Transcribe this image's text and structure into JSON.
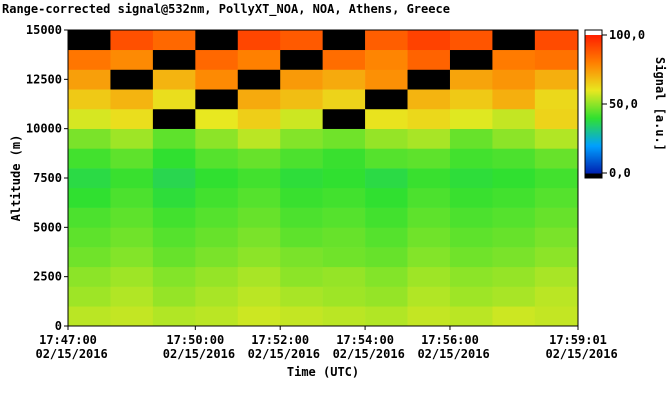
{
  "chart_data": {
    "type": "heatmap",
    "title": "Range-corrected signal@532nm, PollyXT_NOA, NOA, Athens, Greece",
    "x_label": "Time (UTC)",
    "y_label": "Altitude (m)",
    "colorbar_label": "Signal [a.u.]",
    "x_bins": [
      "2016-02-15T17:47:00",
      "2016-02-15T17:48:00",
      "2016-02-15T17:49:00",
      "2016-02-15T17:50:00",
      "2016-02-15T17:51:00",
      "2016-02-15T17:52:00",
      "2016-02-15T17:53:00",
      "2016-02-15T17:54:00",
      "2016-02-15T17:55:00",
      "2016-02-15T17:56:00",
      "2016-02-15T17:57:00",
      "2016-02-15T17:58:00",
      "2016-02-15T17:59:01"
    ],
    "y_bins": [
      0,
      1000,
      2000,
      3000,
      4000,
      5000,
      6000,
      7000,
      8000,
      9000,
      10000,
      11000,
      12000,
      13000,
      14000,
      15000
    ],
    "values": [
      [
        55,
        56,
        54,
        55,
        57,
        56,
        55,
        54,
        56,
        55,
        57,
        56
      ],
      [
        52,
        54,
        51,
        53,
        55,
        53,
        52,
        51,
        54,
        52,
        53,
        55
      ],
      [
        50,
        52,
        49,
        51,
        53,
        50,
        51,
        49,
        52,
        50,
        51,
        53
      ],
      [
        47,
        49,
        46,
        48,
        50,
        48,
        47,
        46,
        49,
        47,
        48,
        50
      ],
      [
        45,
        47,
        44,
        46,
        48,
        45,
        46,
        44,
        47,
        45,
        46,
        48
      ],
      [
        43,
        45,
        42,
        44,
        46,
        43,
        44,
        42,
        45,
        43,
        44,
        46
      ],
      [
        40,
        43,
        39,
        42,
        44,
        41,
        42,
        40,
        43,
        41,
        42,
        44
      ],
      [
        38,
        41,
        37,
        40,
        42,
        39,
        40,
        38,
        41,
        39,
        40,
        42
      ],
      [
        42,
        45,
        40,
        44,
        46,
        43,
        41,
        44,
        45,
        42,
        43,
        46
      ],
      [
        48,
        52,
        45,
        50,
        55,
        49,
        47,
        51,
        53,
        46,
        50,
        54
      ],
      [
        58,
        62,
        null,
        60,
        65,
        57,
        null,
        61,
        63,
        59,
        56,
        64
      ],
      [
        66,
        70,
        62,
        null,
        72,
        68,
        64,
        null,
        70,
        66,
        71,
        63
      ],
      [
        74,
        null,
        70,
        78,
        null,
        75,
        72,
        77,
        null,
        73,
        76,
        71
      ],
      [
        82,
        78,
        null,
        85,
        80,
        null,
        84,
        79,
        86,
        null,
        81,
        83
      ],
      [
        null,
        90,
        85,
        null,
        92,
        88,
        null,
        87,
        93,
        89,
        null,
        91
      ]
    ],
    "xlim": [
      "2016-02-15T17:47:00",
      "2016-02-15T17:59:01"
    ],
    "xticks": [
      {
        "value": "2016-02-15T17:47:00",
        "label": "17:47:00 02/15/2016"
      },
      {
        "value": "2016-02-15T17:50:00",
        "label": "17:50:00 02/15/2016"
      },
      {
        "value": "2016-02-15T17:52:00",
        "label": "17:52:00 02/15/2016"
      },
      {
        "value": "2016-02-15T17:54:00",
        "label": "17:54:00 02/15/2016"
      },
      {
        "value": "2016-02-15T17:56:00",
        "label": "17:56:00 02/15/2016"
      },
      {
        "value": "2016-02-15T17:59:01",
        "label": "17:59:01 02/15/2016"
      }
    ],
    "ylim": [
      0,
      15000
    ],
    "yticks": [
      0,
      2500,
      5000,
      7500,
      10000,
      12500,
      15000
    ],
    "clim": [
      0,
      100
    ],
    "cticks": [
      {
        "value": 0,
        "label": "0,0"
      },
      {
        "value": 50,
        "label": "50,0"
      },
      {
        "value": 100,
        "label": "100,0"
      }
    ],
    "colormap": [
      "#0020b0",
      "#00a0ff",
      "#30e030",
      "#e8e820",
      "#ff8000",
      "#ff2000"
    ],
    "missing_color": "#000000"
  }
}
